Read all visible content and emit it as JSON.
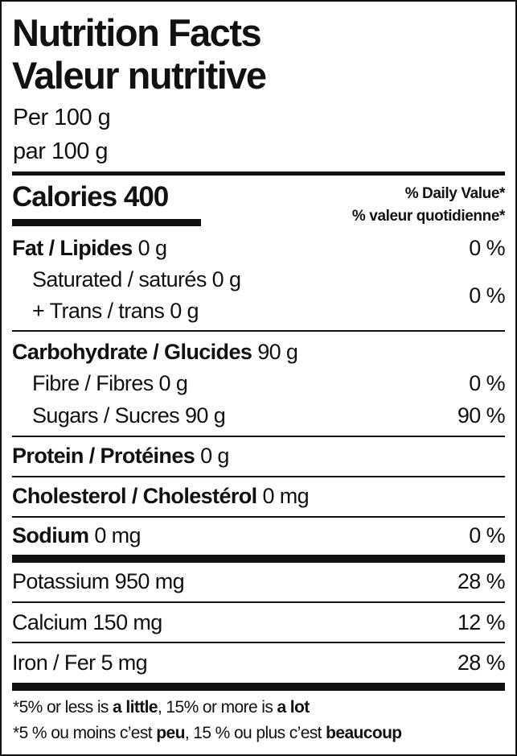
{
  "title_en": "Nutrition Facts",
  "title_fr": "Valeur nutritive",
  "serving_en": "Per 100 g",
  "serving_fr": "par 100 g",
  "calories_label": "Calories",
  "calories_value": "400",
  "dv_en": "% Daily Value*",
  "dv_fr": "% valeur quotidienne*",
  "nutrients": {
    "fat": {
      "name": "Fat / Lipides",
      "amount": "0 g",
      "dv": "0 %"
    },
    "saturated": {
      "name": "Saturated / saturés",
      "amount": "0 g"
    },
    "trans": {
      "name": "+ Trans / trans",
      "amount": "0 g"
    },
    "sat_trans_dv": "0 %",
    "carbohydrate": {
      "name": "Carbohydrate / Glucides",
      "amount": "90 g"
    },
    "fibre": {
      "name": "Fibre / Fibres",
      "amount": "0 g",
      "dv": "0 %"
    },
    "sugars": {
      "name": "Sugars / Sucres",
      "amount": "90 g",
      "dv": "90 %"
    },
    "protein": {
      "name": "Protein / Protéines",
      "amount": "0 g"
    },
    "cholesterol": {
      "name": "Cholesterol / Cholestérol",
      "amount": "0 mg"
    },
    "sodium": {
      "name": "Sodium",
      "amount": "0 mg",
      "dv": "0 %"
    },
    "potassium": {
      "name": "Potassium",
      "amount": "950 mg",
      "dv": "28 %"
    },
    "calcium": {
      "name": "Calcium",
      "amount": "150 mg",
      "dv": "12 %"
    },
    "iron": {
      "name": "Iron / Fer",
      "amount": "5 mg",
      "dv": "28 %"
    }
  },
  "footnote_en": {
    "p1": "*5% or less is ",
    "b1": "a little",
    "p2": ", 15% or more is ",
    "b2": "a lot"
  },
  "footnote_fr": {
    "p1": "*5 % ou moins c’est ",
    "b1": "peu",
    "p2": ", 15 % ou plus c’est ",
    "b2": "beaucoup"
  }
}
